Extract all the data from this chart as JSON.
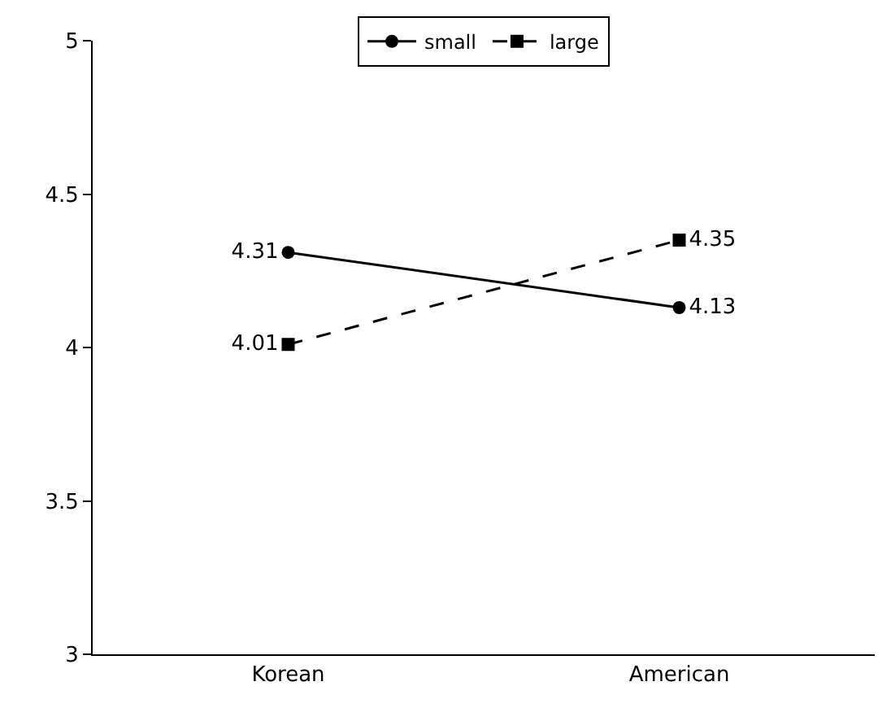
{
  "chart_data": {
    "type": "line",
    "categories": [
      "Korean",
      "American"
    ],
    "series": [
      {
        "name": "small",
        "color": "#000000",
        "values": [
          4.31,
          4.13
        ],
        "marker": "circle",
        "line_style": "solid"
      },
      {
        "name": "large",
        "color": "#000000",
        "values": [
          4.01,
          4.35
        ],
        "marker": "square",
        "line_style": "dashed"
      }
    ],
    "ylim": [
      3,
      5
    ],
    "yticks": [
      3,
      3.5,
      4,
      4.5,
      5
    ],
    "grid": false,
    "legend": "top",
    "data_labels": true
  }
}
